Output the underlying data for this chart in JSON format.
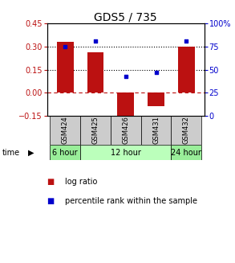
{
  "title": "GDS5 / 735",
  "samples": [
    "GSM424",
    "GSM425",
    "GSM426",
    "GSM431",
    "GSM432"
  ],
  "log_ratio": [
    0.33,
    0.265,
    -0.185,
    -0.09,
    0.302
  ],
  "percentile_rank": [
    75,
    81,
    43,
    47,
    81
  ],
  "ylim_left": [
    -0.15,
    0.45
  ],
  "ylim_right": [
    0,
    100
  ],
  "yticks_left": [
    -0.15,
    0,
    0.15,
    0.3,
    0.45
  ],
  "yticks_right": [
    0,
    25,
    50,
    75,
    100
  ],
  "hlines_dotted": [
    0.15,
    0.3
  ],
  "hline_dashed": 0,
  "bar_color": "#bb1111",
  "dot_color": "#0000cc",
  "time_groups": [
    {
      "label": "6 hour",
      "samples": [
        "GSM424"
      ],
      "color": "#99ee99"
    },
    {
      "label": "12 hour",
      "samples": [
        "GSM425",
        "GSM426",
        "GSM431"
      ],
      "color": "#bbffbb"
    },
    {
      "label": "24 hour",
      "samples": [
        "GSM432"
      ],
      "color": "#99ee99"
    }
  ],
  "bg_sample_color": "#cccccc",
  "bar_width": 0.55,
  "title_fontsize": 10,
  "tick_fontsize": 7,
  "sample_fontsize": 6,
  "time_fontsize": 7,
  "legend_fontsize": 7
}
